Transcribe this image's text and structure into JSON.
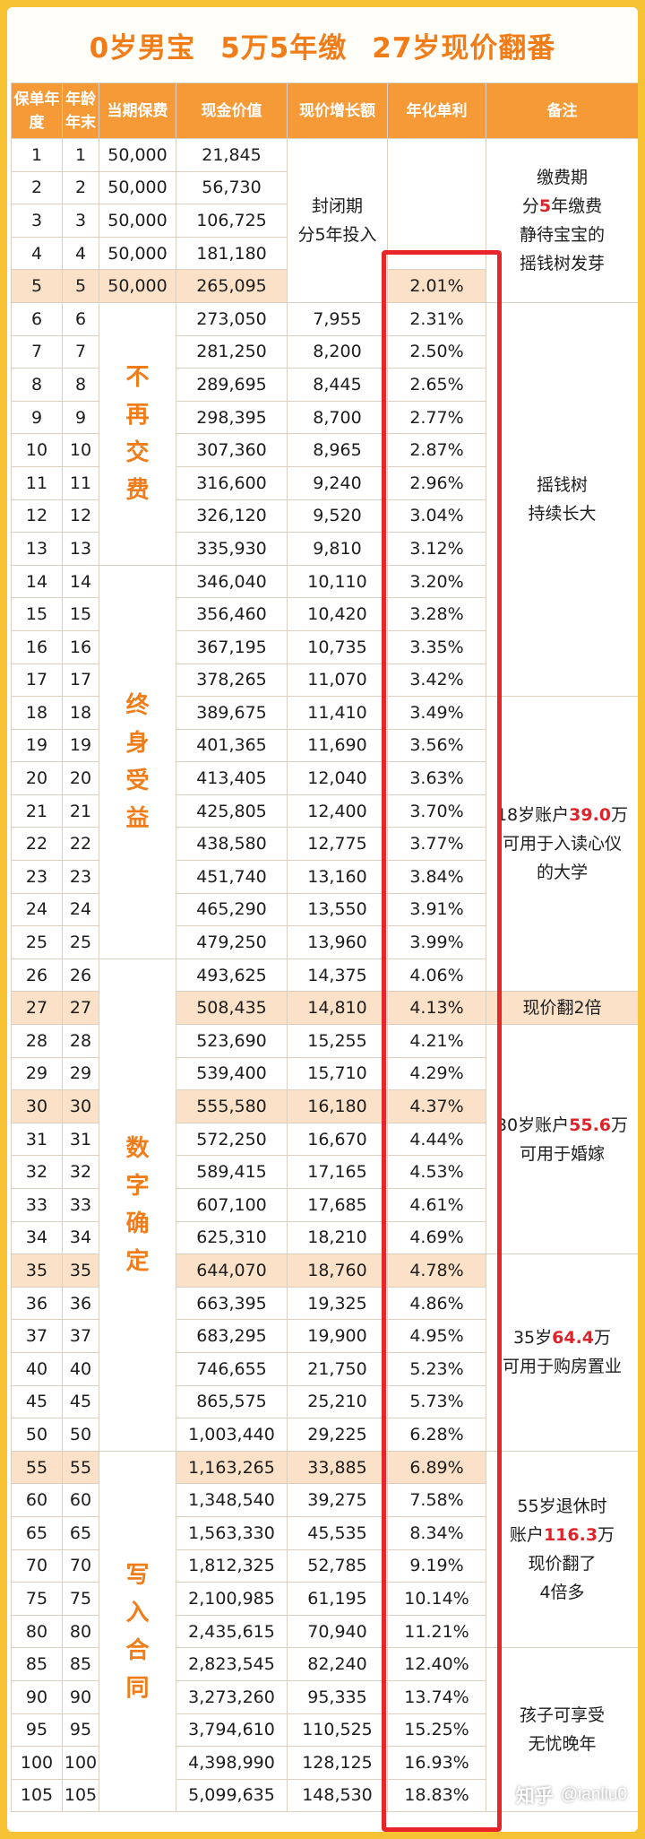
{
  "title": {
    "parts": [
      "0岁男宝",
      "5万5年缴",
      "27岁现价翻番"
    ]
  },
  "headers": [
    "保单年度",
    "年龄年末",
    "当期保费",
    "现金价值",
    "现价增长额",
    "年化单利",
    "备注"
  ],
  "rows": [
    {
      "year": "1",
      "age": "1",
      "premium": "50,000",
      "cash": "21,845",
      "growth": "",
      "rate": "",
      "hl": false
    },
    {
      "year": "2",
      "age": "2",
      "premium": "50,000",
      "cash": "56,730",
      "growth": "",
      "rate": "",
      "hl": false
    },
    {
      "year": "3",
      "age": "3",
      "premium": "50,000",
      "cash": "106,725",
      "growth": "",
      "rate": "",
      "hl": false
    },
    {
      "year": "4",
      "age": "4",
      "premium": "50,000",
      "cash": "181,180",
      "growth": "",
      "rate": "",
      "hl": false
    },
    {
      "year": "5",
      "age": "5",
      "premium": "50,000",
      "cash": "265,095",
      "growth": "",
      "rate": "2.01%",
      "hl": true
    },
    {
      "year": "6",
      "age": "6",
      "premium": "",
      "cash": "273,050",
      "growth": "7,955",
      "rate": "2.31%",
      "hl": false
    },
    {
      "year": "7",
      "age": "7",
      "premium": "",
      "cash": "281,250",
      "growth": "8,200",
      "rate": "2.50%",
      "hl": false
    },
    {
      "year": "8",
      "age": "8",
      "premium": "",
      "cash": "289,695",
      "growth": "8,445",
      "rate": "2.65%",
      "hl": false
    },
    {
      "year": "9",
      "age": "9",
      "premium": "",
      "cash": "298,395",
      "growth": "8,700",
      "rate": "2.77%",
      "hl": false
    },
    {
      "year": "10",
      "age": "10",
      "premium": "",
      "cash": "307,360",
      "growth": "8,965",
      "rate": "2.87%",
      "hl": false
    },
    {
      "year": "11",
      "age": "11",
      "premium": "",
      "cash": "316,600",
      "growth": "9,240",
      "rate": "2.96%",
      "hl": false
    },
    {
      "year": "12",
      "age": "12",
      "premium": "",
      "cash": "326,120",
      "growth": "9,520",
      "rate": "3.04%",
      "hl": false
    },
    {
      "year": "13",
      "age": "13",
      "premium": "",
      "cash": "335,930",
      "growth": "9,810",
      "rate": "3.12%",
      "hl": false
    },
    {
      "year": "14",
      "age": "14",
      "premium": "",
      "cash": "346,040",
      "growth": "10,110",
      "rate": "3.20%",
      "hl": false
    },
    {
      "year": "15",
      "age": "15",
      "premium": "",
      "cash": "356,460",
      "growth": "10,420",
      "rate": "3.28%",
      "hl": false
    },
    {
      "year": "16",
      "age": "16",
      "premium": "",
      "cash": "367,195",
      "growth": "10,735",
      "rate": "3.35%",
      "hl": false
    },
    {
      "year": "17",
      "age": "17",
      "premium": "",
      "cash": "378,265",
      "growth": "11,070",
      "rate": "3.42%",
      "hl": false
    },
    {
      "year": "18",
      "age": "18",
      "premium": "",
      "cash": "389,675",
      "growth": "11,410",
      "rate": "3.49%",
      "hl": false
    },
    {
      "year": "19",
      "age": "19",
      "premium": "",
      "cash": "401,365",
      "growth": "11,690",
      "rate": "3.56%",
      "hl": false
    },
    {
      "year": "20",
      "age": "20",
      "premium": "",
      "cash": "413,405",
      "growth": "12,040",
      "rate": "3.63%",
      "hl": false
    },
    {
      "year": "21",
      "age": "21",
      "premium": "",
      "cash": "425,805",
      "growth": "12,400",
      "rate": "3.70%",
      "hl": false
    },
    {
      "year": "22",
      "age": "22",
      "premium": "",
      "cash": "438,580",
      "growth": "12,775",
      "rate": "3.77%",
      "hl": false
    },
    {
      "year": "23",
      "age": "23",
      "premium": "",
      "cash": "451,740",
      "growth": "13,160",
      "rate": "3.84%",
      "hl": false
    },
    {
      "year": "24",
      "age": "24",
      "premium": "",
      "cash": "465,290",
      "growth": "13,550",
      "rate": "3.91%",
      "hl": false
    },
    {
      "year": "25",
      "age": "25",
      "premium": "",
      "cash": "479,250",
      "growth": "13,960",
      "rate": "3.99%",
      "hl": false
    },
    {
      "year": "26",
      "age": "26",
      "premium": "",
      "cash": "493,625",
      "growth": "14,375",
      "rate": "4.06%",
      "hl": false
    },
    {
      "year": "27",
      "age": "27",
      "premium": "",
      "cash": "508,435",
      "growth": "14,810",
      "rate": "4.13%",
      "hl": true
    },
    {
      "year": "28",
      "age": "28",
      "premium": "",
      "cash": "523,690",
      "growth": "15,255",
      "rate": "4.21%",
      "hl": false
    },
    {
      "year": "29",
      "age": "29",
      "premium": "",
      "cash": "539,400",
      "growth": "15,710",
      "rate": "4.29%",
      "hl": false
    },
    {
      "year": "30",
      "age": "30",
      "premium": "",
      "cash": "555,580",
      "growth": "16,180",
      "rate": "4.37%",
      "hl": true
    },
    {
      "year": "31",
      "age": "31",
      "premium": "",
      "cash": "572,250",
      "growth": "16,670",
      "rate": "4.44%",
      "hl": false
    },
    {
      "year": "32",
      "age": "32",
      "premium": "",
      "cash": "589,415",
      "growth": "17,165",
      "rate": "4.53%",
      "hl": false
    },
    {
      "year": "33",
      "age": "33",
      "premium": "",
      "cash": "607,100",
      "growth": "17,685",
      "rate": "4.61%",
      "hl": false
    },
    {
      "year": "34",
      "age": "34",
      "premium": "",
      "cash": "625,310",
      "growth": "18,210",
      "rate": "4.69%",
      "hl": false
    },
    {
      "year": "35",
      "age": "35",
      "premium": "",
      "cash": "644,070",
      "growth": "18,760",
      "rate": "4.78%",
      "hl": true
    },
    {
      "year": "36",
      "age": "36",
      "premium": "",
      "cash": "663,395",
      "growth": "19,325",
      "rate": "4.86%",
      "hl": false
    },
    {
      "year": "37",
      "age": "37",
      "premium": "",
      "cash": "683,295",
      "growth": "19,900",
      "rate": "4.95%",
      "hl": false
    },
    {
      "year": "40",
      "age": "40",
      "premium": "",
      "cash": "746,655",
      "growth": "21,750",
      "rate": "5.23%",
      "hl": false
    },
    {
      "year": "45",
      "age": "45",
      "premium": "",
      "cash": "865,575",
      "growth": "25,210",
      "rate": "5.73%",
      "hl": false
    },
    {
      "year": "50",
      "age": "50",
      "premium": "",
      "cash": "1,003,440",
      "growth": "29,225",
      "rate": "6.28%",
      "hl": false
    },
    {
      "year": "55",
      "age": "55",
      "premium": "",
      "cash": "1,163,265",
      "growth": "33,885",
      "rate": "6.89%",
      "hl": true
    },
    {
      "year": "60",
      "age": "60",
      "premium": "",
      "cash": "1,348,540",
      "growth": "39,275",
      "rate": "7.58%",
      "hl": false
    },
    {
      "year": "65",
      "age": "65",
      "premium": "",
      "cash": "1,563,330",
      "growth": "45,535",
      "rate": "8.34%",
      "hl": false
    },
    {
      "year": "70",
      "age": "70",
      "premium": "",
      "cash": "1,812,325",
      "growth": "52,785",
      "rate": "9.19%",
      "hl": false
    },
    {
      "year": "75",
      "age": "75",
      "premium": "",
      "cash": "2,100,985",
      "growth": "61,195",
      "rate": "10.14%",
      "hl": false
    },
    {
      "year": "80",
      "age": "80",
      "premium": "",
      "cash": "2,435,615",
      "growth": "70,940",
      "rate": "11.21%",
      "hl": false
    },
    {
      "year": "85",
      "age": "85",
      "premium": "",
      "cash": "2,823,545",
      "growth": "82,240",
      "rate": "12.40%",
      "hl": false
    },
    {
      "year": "90",
      "age": "90",
      "premium": "",
      "cash": "3,273,260",
      "growth": "95,335",
      "rate": "13.74%",
      "hl": false
    },
    {
      "year": "95",
      "age": "95",
      "premium": "",
      "cash": "3,794,610",
      "growth": "110,525",
      "rate": "15.25%",
      "hl": false
    },
    {
      "year": "100",
      "age": "100",
      "premium": "",
      "cash": "4,398,990",
      "growth": "128,125",
      "rate": "16.93%",
      "hl": false
    },
    {
      "year": "105",
      "age": "105",
      "premium": "",
      "cash": "5,099,635",
      "growth": "148,530",
      "rate": "18.83%",
      "hl": false
    }
  ],
  "closed_period_label": [
    "封闭期",
    "分5年投入"
  ],
  "side_labels": [
    {
      "start": 5,
      "span": 8,
      "chars": [
        "不",
        "再",
        "交",
        "费"
      ]
    },
    {
      "start": 13,
      "span": 12,
      "chars": [
        "终",
        "身",
        "受",
        "益"
      ]
    },
    {
      "start": 25,
      "span": 15,
      "chars": [
        "数",
        "字",
        "确",
        "定"
      ]
    },
    {
      "start": 40,
      "span": 11,
      "chars": [
        "写",
        "入",
        "合",
        "同"
      ]
    }
  ],
  "notes": [
    {
      "start": 0,
      "span": 5,
      "lines": [
        [
          {
            "t": "缴费期"
          }
        ],
        [
          {
            "t": "分"
          },
          {
            "t": "5",
            "red": true
          },
          {
            "t": "年缴费"
          }
        ],
        [
          {
            "t": "静待宝宝的"
          }
        ],
        [
          {
            "t": "摇钱树发芽"
          }
        ]
      ]
    },
    {
      "start": 5,
      "span": 12,
      "lines": [
        [
          {
            "t": "摇钱树"
          }
        ],
        [
          {
            "t": "持续长大"
          }
        ]
      ]
    },
    {
      "start": 17,
      "span": 9,
      "lines": [
        [
          {
            "t": "18岁账户"
          },
          {
            "t": "39.0",
            "red": true
          },
          {
            "t": "万"
          }
        ],
        [
          {
            "t": "可用于入读心仪"
          }
        ],
        [
          {
            "t": "的大学"
          }
        ]
      ]
    },
    {
      "start": 26,
      "span": 1,
      "hl": true,
      "lines": [
        [
          {
            "t": "现价翻2倍"
          }
        ]
      ]
    },
    {
      "start": 27,
      "span": 7,
      "lines": [
        [
          {
            "t": "30岁账户"
          },
          {
            "t": "55.6",
            "red": true
          },
          {
            "t": "万"
          }
        ],
        [
          {
            "t": "可用于婚嫁"
          }
        ]
      ]
    },
    {
      "start": 34,
      "span": 6,
      "lines": [
        [
          {
            "t": "35岁"
          },
          {
            "t": "64.4",
            "red": true
          },
          {
            "t": "万"
          }
        ],
        [
          {
            "t": "可用于购房置业"
          }
        ]
      ]
    },
    {
      "start": 40,
      "span": 6,
      "lines": [
        [
          {
            "t": "55岁退休时"
          }
        ],
        [
          {
            "t": "账户"
          },
          {
            "t": "116.3",
            "red": true
          },
          {
            "t": "万"
          }
        ],
        [
          {
            "t": "现价翻了"
          }
        ],
        [
          {
            "t": "4倍多"
          }
        ]
      ]
    },
    {
      "start": 46,
      "span": 5,
      "lines": [
        [
          {
            "t": "孩子可享受"
          }
        ],
        [
          {
            "t": "无忧晚年"
          }
        ]
      ]
    }
  ],
  "watermark": {
    "site": "知乎",
    "user": "@ianliu0"
  },
  "colors": {
    "accent": "#f07d1a",
    "header_bg": "#f59a37",
    "highlight_row": "#fbe1c8",
    "red_box": "#e8262a",
    "red_text": "#e0232a",
    "border": "#f7c233"
  }
}
